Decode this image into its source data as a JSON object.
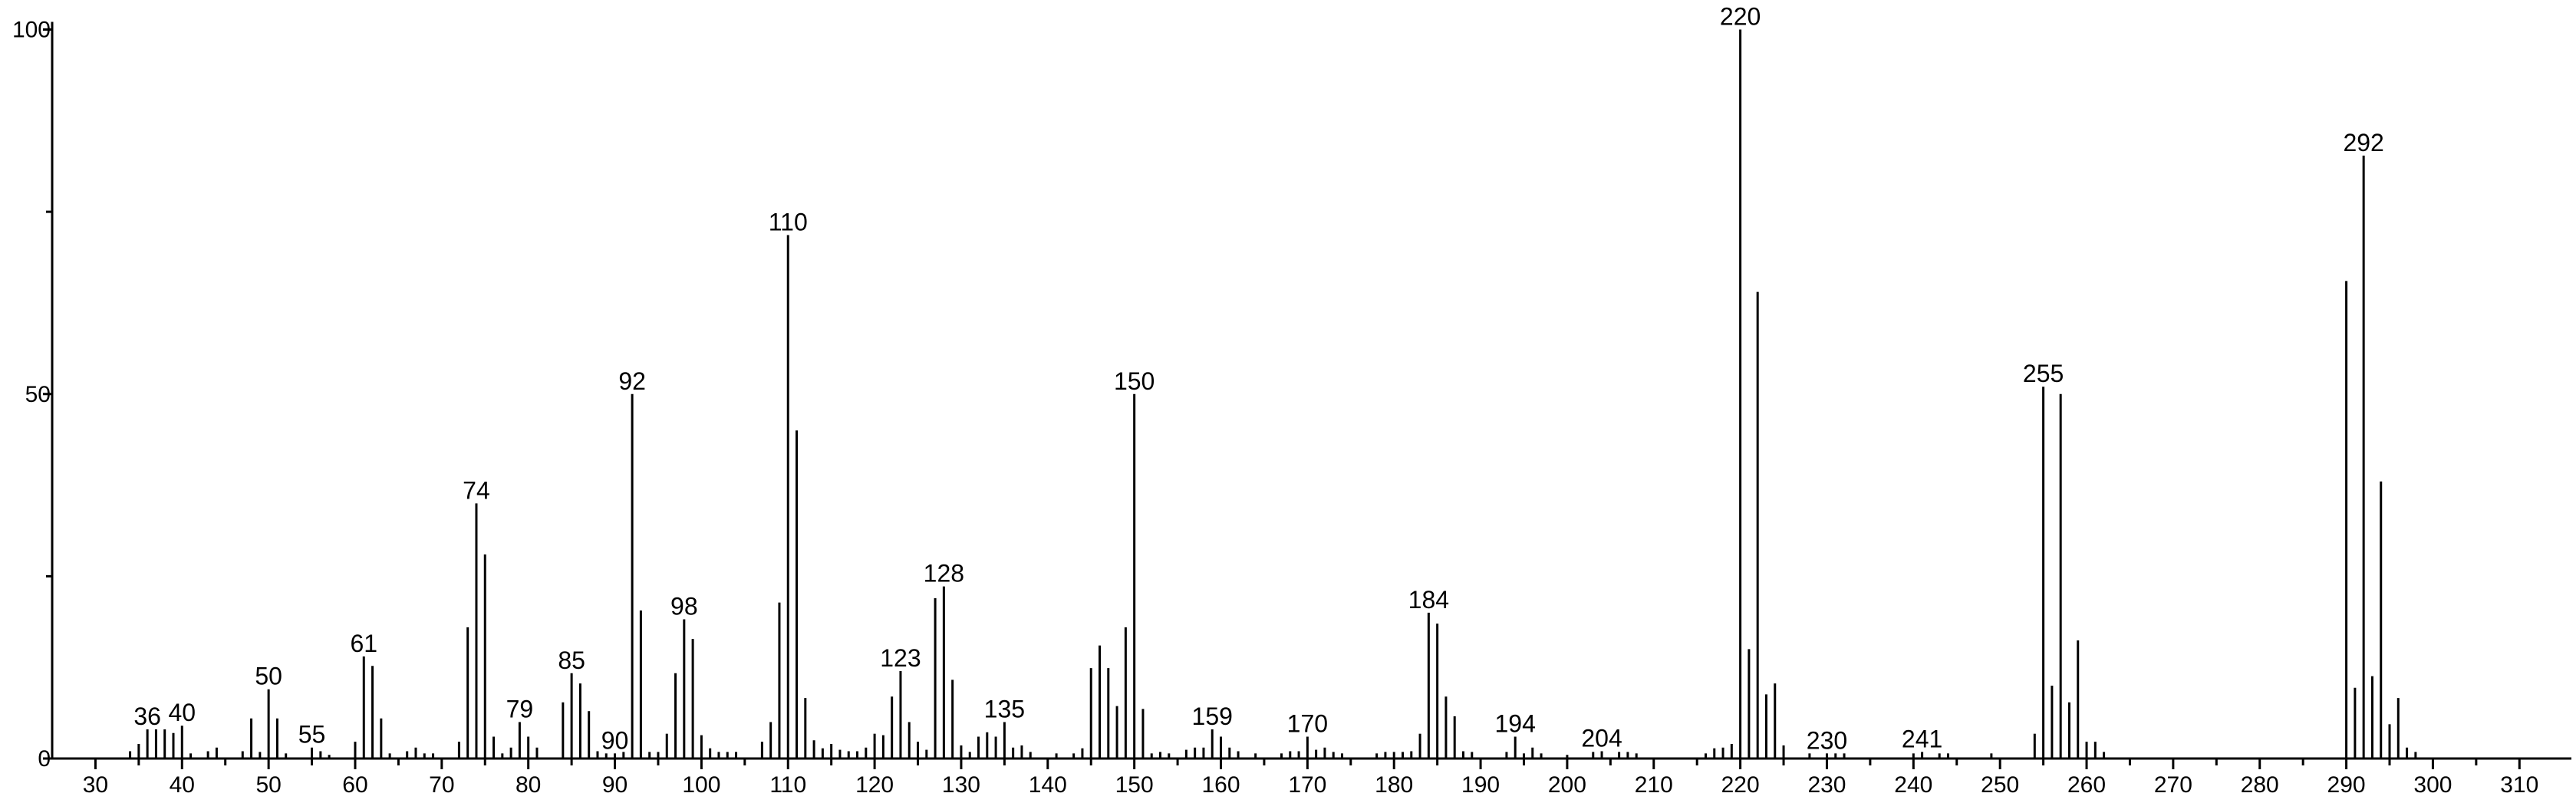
{
  "chart_data": {
    "type": "stem",
    "color": "#000000",
    "xlim": [
      25,
      316
    ],
    "ylim": [
      0,
      100
    ],
    "xticks": [
      30,
      40,
      50,
      60,
      70,
      80,
      90,
      100,
      110,
      120,
      130,
      140,
      150,
      160,
      170,
      180,
      190,
      200,
      210,
      220,
      230,
      240,
      250,
      260,
      270,
      280,
      290,
      300,
      310
    ],
    "xticks_minor": [
      35,
      45,
      55,
      65,
      75,
      85,
      95,
      105,
      115,
      125,
      135,
      145,
      155,
      165,
      175,
      185,
      195,
      205,
      215,
      225,
      235,
      245,
      255,
      265,
      275,
      285,
      295,
      305
    ],
    "yticks": [
      0,
      50,
      100
    ],
    "yticks_minor": [
      25,
      75
    ],
    "x": [
      34,
      35,
      36,
      37,
      38,
      39,
      40,
      41,
      43,
      44,
      47,
      48,
      49,
      50,
      51,
      52,
      55,
      56,
      57,
      60,
      61,
      62,
      63,
      64,
      66,
      67,
      68,
      69,
      72,
      73,
      74,
      75,
      76,
      77,
      78,
      79,
      80,
      81,
      84,
      85,
      86,
      87,
      88,
      89,
      90,
      91,
      92,
      93,
      94,
      95,
      96,
      97,
      98,
      99,
      100,
      101,
      102,
      103,
      104,
      107,
      108,
      109,
      110,
      111,
      112,
      113,
      114,
      115,
      116,
      117,
      118,
      119,
      120,
      121,
      122,
      123,
      124,
      125,
      126,
      127,
      128,
      129,
      130,
      131,
      132,
      133,
      134,
      135,
      136,
      137,
      138,
      141,
      143,
      144,
      145,
      146,
      147,
      148,
      149,
      150,
      151,
      152,
      153,
      154,
      156,
      157,
      158,
      159,
      160,
      161,
      162,
      164,
      167,
      168,
      169,
      170,
      171,
      172,
      173,
      174,
      178,
      179,
      180,
      181,
      182,
      183,
      184,
      185,
      186,
      187,
      188,
      189,
      193,
      194,
      195,
      196,
      197,
      200,
      203,
      204,
      206,
      207,
      208,
      216,
      217,
      218,
      219,
      220,
      221,
      222,
      223,
      224,
      225,
      228,
      230,
      231,
      232,
      240,
      241,
      243,
      244,
      249,
      254,
      255,
      256,
      257,
      258,
      259,
      260,
      261,
      262,
      290,
      291,
      292,
      293,
      294,
      295,
      296,
      297,
      298
    ],
    "values": [
      1,
      2,
      4,
      4,
      4,
      3.5,
      4.5,
      0.7,
      1,
      1.5,
      1,
      5.5,
      0.9,
      9.5,
      5.5,
      0.7,
      1.5,
      1,
      0.5,
      2.3,
      14,
      12.7,
      5.5,
      0.7,
      1,
      1.5,
      0.7,
      0.7,
      2.3,
      18,
      35,
      28,
      3,
      0.7,
      1.5,
      5,
      3,
      1.5,
      7.7,
      11.7,
      10.3,
      6.5,
      1,
      0.7,
      0.7,
      0.9,
      50,
      20.3,
      0.9,
      0.9,
      3.4,
      11.7,
      19.1,
      16.4,
      3.2,
      1.4,
      0.9,
      0.9,
      0.9,
      2.3,
      5,
      21.4,
      71.8,
      45,
      8.3,
      2.5,
      1.4,
      2,
      1.2,
      1,
      1,
      1.5,
      3.4,
      3.2,
      8.5,
      12,
      5,
      2.3,
      1.2,
      22,
      23.6,
      10.8,
      1.8,
      0.9,
      3,
      3.6,
      3,
      5,
      1.5,
      1.8,
      0.9,
      0.7,
      0.7,
      1.4,
      12.4,
      15.5,
      12.4,
      7.2,
      18,
      50,
      6.8,
      0.7,
      0.9,
      0.7,
      1.2,
      1.5,
      1.5,
      4,
      3,
      1.5,
      1,
      0.7,
      0.7,
      1,
      1,
      3,
      1.2,
      1.5,
      0.9,
      0.7,
      0.7,
      0.9,
      0.9,
      0.9,
      1,
      3.4,
      20,
      18.5,
      8.5,
      5.8,
      1,
      0.9,
      0.9,
      3,
      0.7,
      1.5,
      0.7,
      0.5,
      0.9,
      1,
      0.9,
      0.9,
      0.7,
      0.7,
      1.4,
      1.5,
      2,
      100,
      15,
      64,
      8.8,
      10.3,
      1.8,
      0.7,
      0.7,
      0.7,
      0.7,
      0.7,
      0.9,
      0.7,
      0.7,
      0.7,
      3.4,
      51,
      10,
      50,
      7.7,
      16.2,
      2.3,
      2.3,
      0.9,
      65.5,
      9.7,
      82.7,
      11.3,
      38,
      4.7,
      8.3,
      1.5,
      0.9
    ],
    "labeled_x": [
      36,
      40,
      50,
      55,
      61,
      74,
      79,
      85,
      90,
      92,
      98,
      110,
      123,
      128,
      135,
      150,
      159,
      170,
      184,
      194,
      204,
      220,
      230,
      241,
      255,
      292
    ]
  }
}
